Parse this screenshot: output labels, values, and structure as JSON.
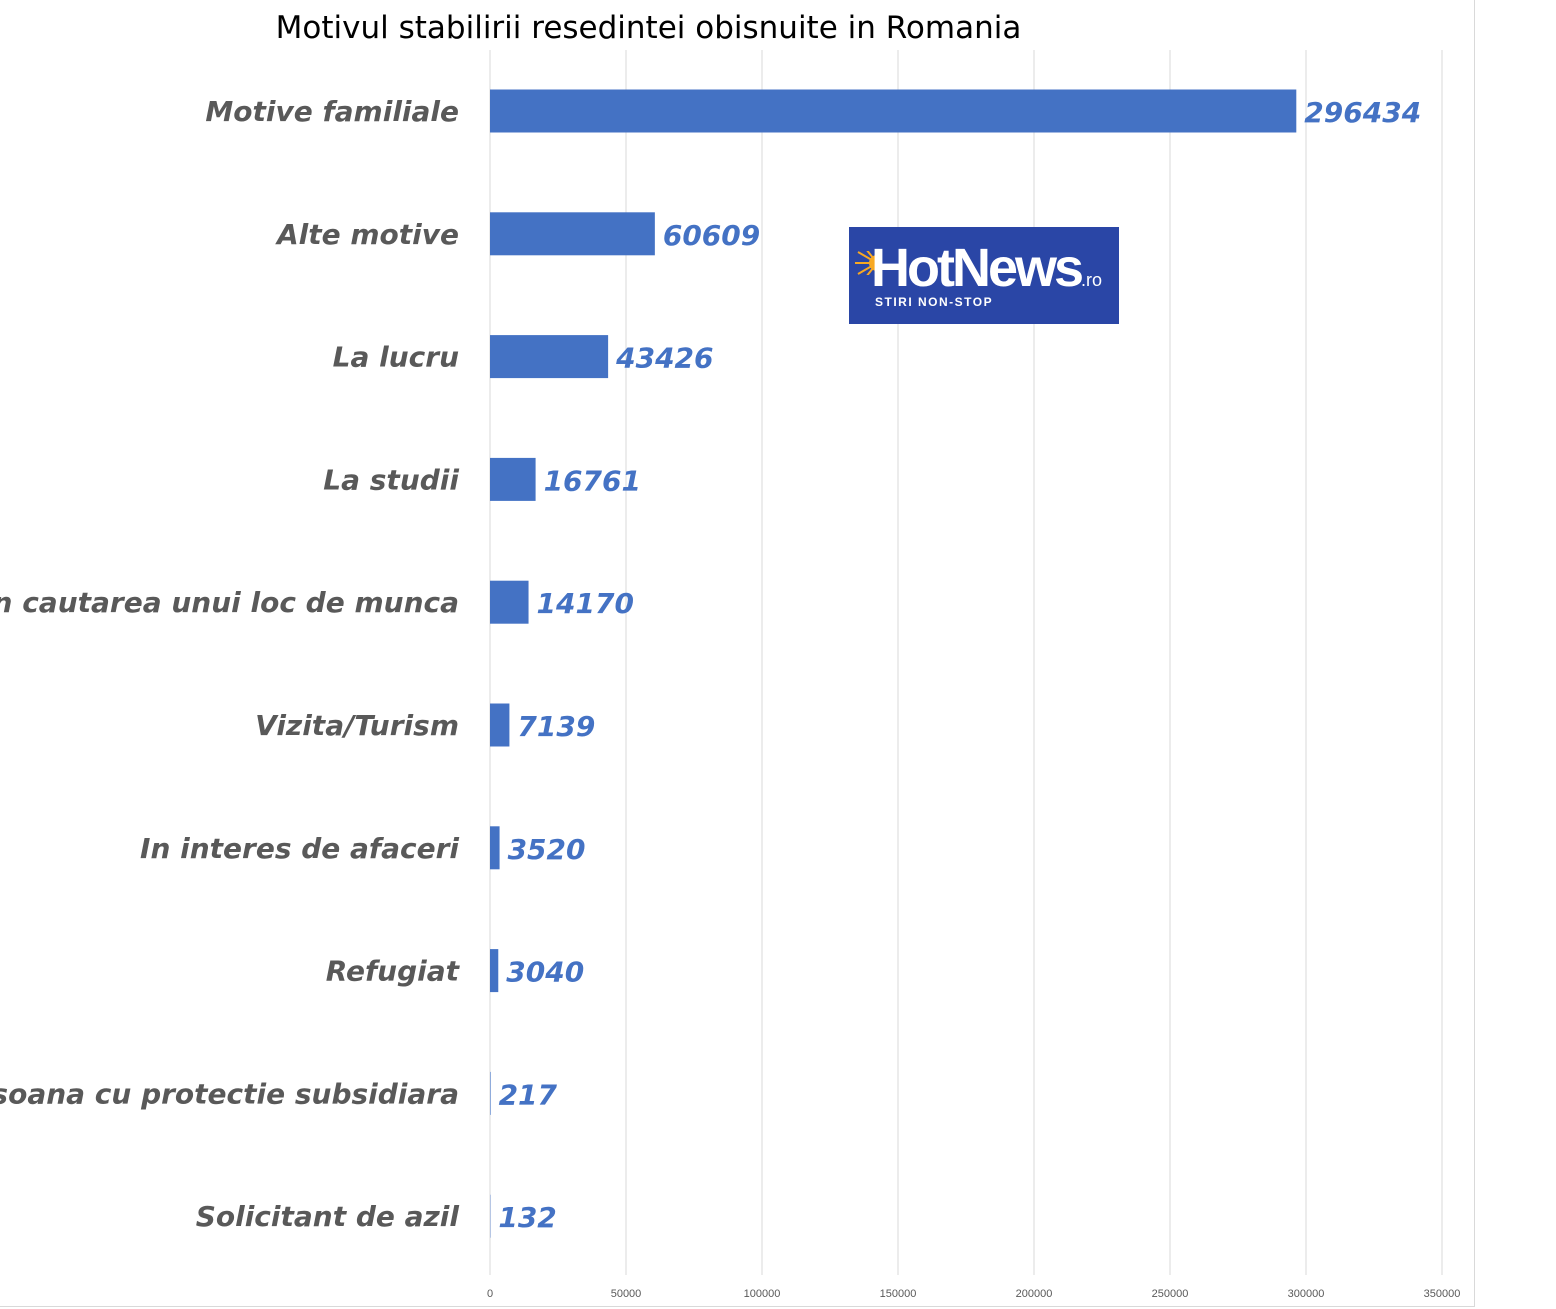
{
  "chart_data": {
    "type": "bar",
    "orientation": "horizontal",
    "title": "Motivul stabilirii resedintei obisnuite in Romania",
    "categories": [
      "Motive familiale",
      "Alte motive",
      "La lucru",
      "La studii",
      "In cautarea unui loc de munca",
      "Vizita/Turism",
      "In interes de afaceri",
      "Refugiat",
      "Persoana cu protectie subsidiara",
      "Solicitant de azil"
    ],
    "values": [
      296434,
      60609,
      43426,
      16761,
      14170,
      7139,
      3520,
      3040,
      217,
      132
    ],
    "xlim": [
      0,
      350000
    ],
    "x_ticks": [
      0,
      50000,
      100000,
      150000,
      200000,
      250000,
      300000,
      350000
    ],
    "grid": true,
    "legend": "none",
    "colors": {
      "bar": "#4472c4",
      "data_label": "#4472c4",
      "category_label": "#595959",
      "grid": "#d9d9d9"
    }
  },
  "logo": {
    "brand": "HotNews",
    "suffix": ".ro",
    "tagline": "STIRI NON-STOP",
    "background": "#2a46a6",
    "sun_color": "#f7a823"
  }
}
